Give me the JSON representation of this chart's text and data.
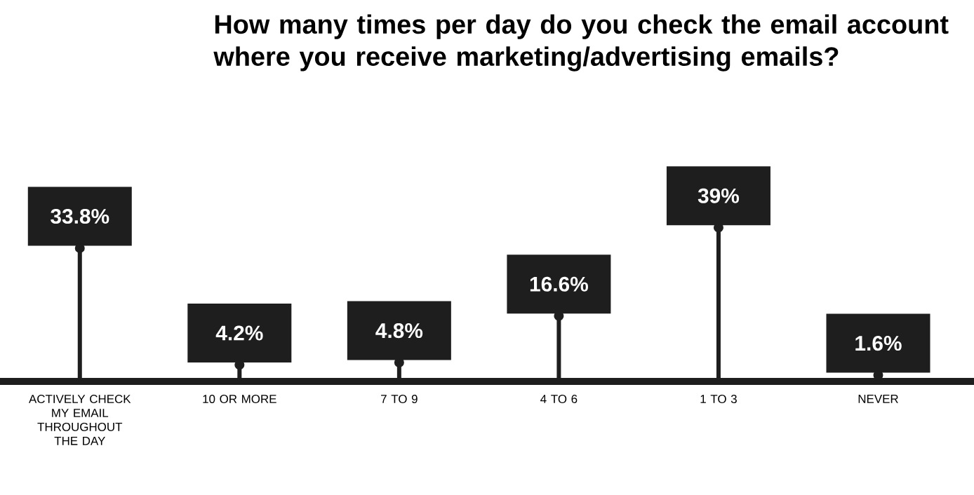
{
  "chart_data": {
    "type": "lollipop",
    "title": "How many times per day do you check the email account where you receive marketing/advertising emails?",
    "categories": [
      "ACTIVELY CHECK MY EMAIL THROUGHOUT THE DAY",
      "10 OR MORE",
      "7 TO 9",
      "4 TO 6",
      "1 TO 3",
      "NEVER"
    ],
    "values": [
      33.8,
      4.2,
      4.8,
      16.6,
      39,
      1.6
    ],
    "value_labels": [
      "33.8%",
      "4.2%",
      "4.8%",
      "16.6%",
      "39%",
      "1.6%"
    ],
    "color": "#1e1e1e"
  }
}
